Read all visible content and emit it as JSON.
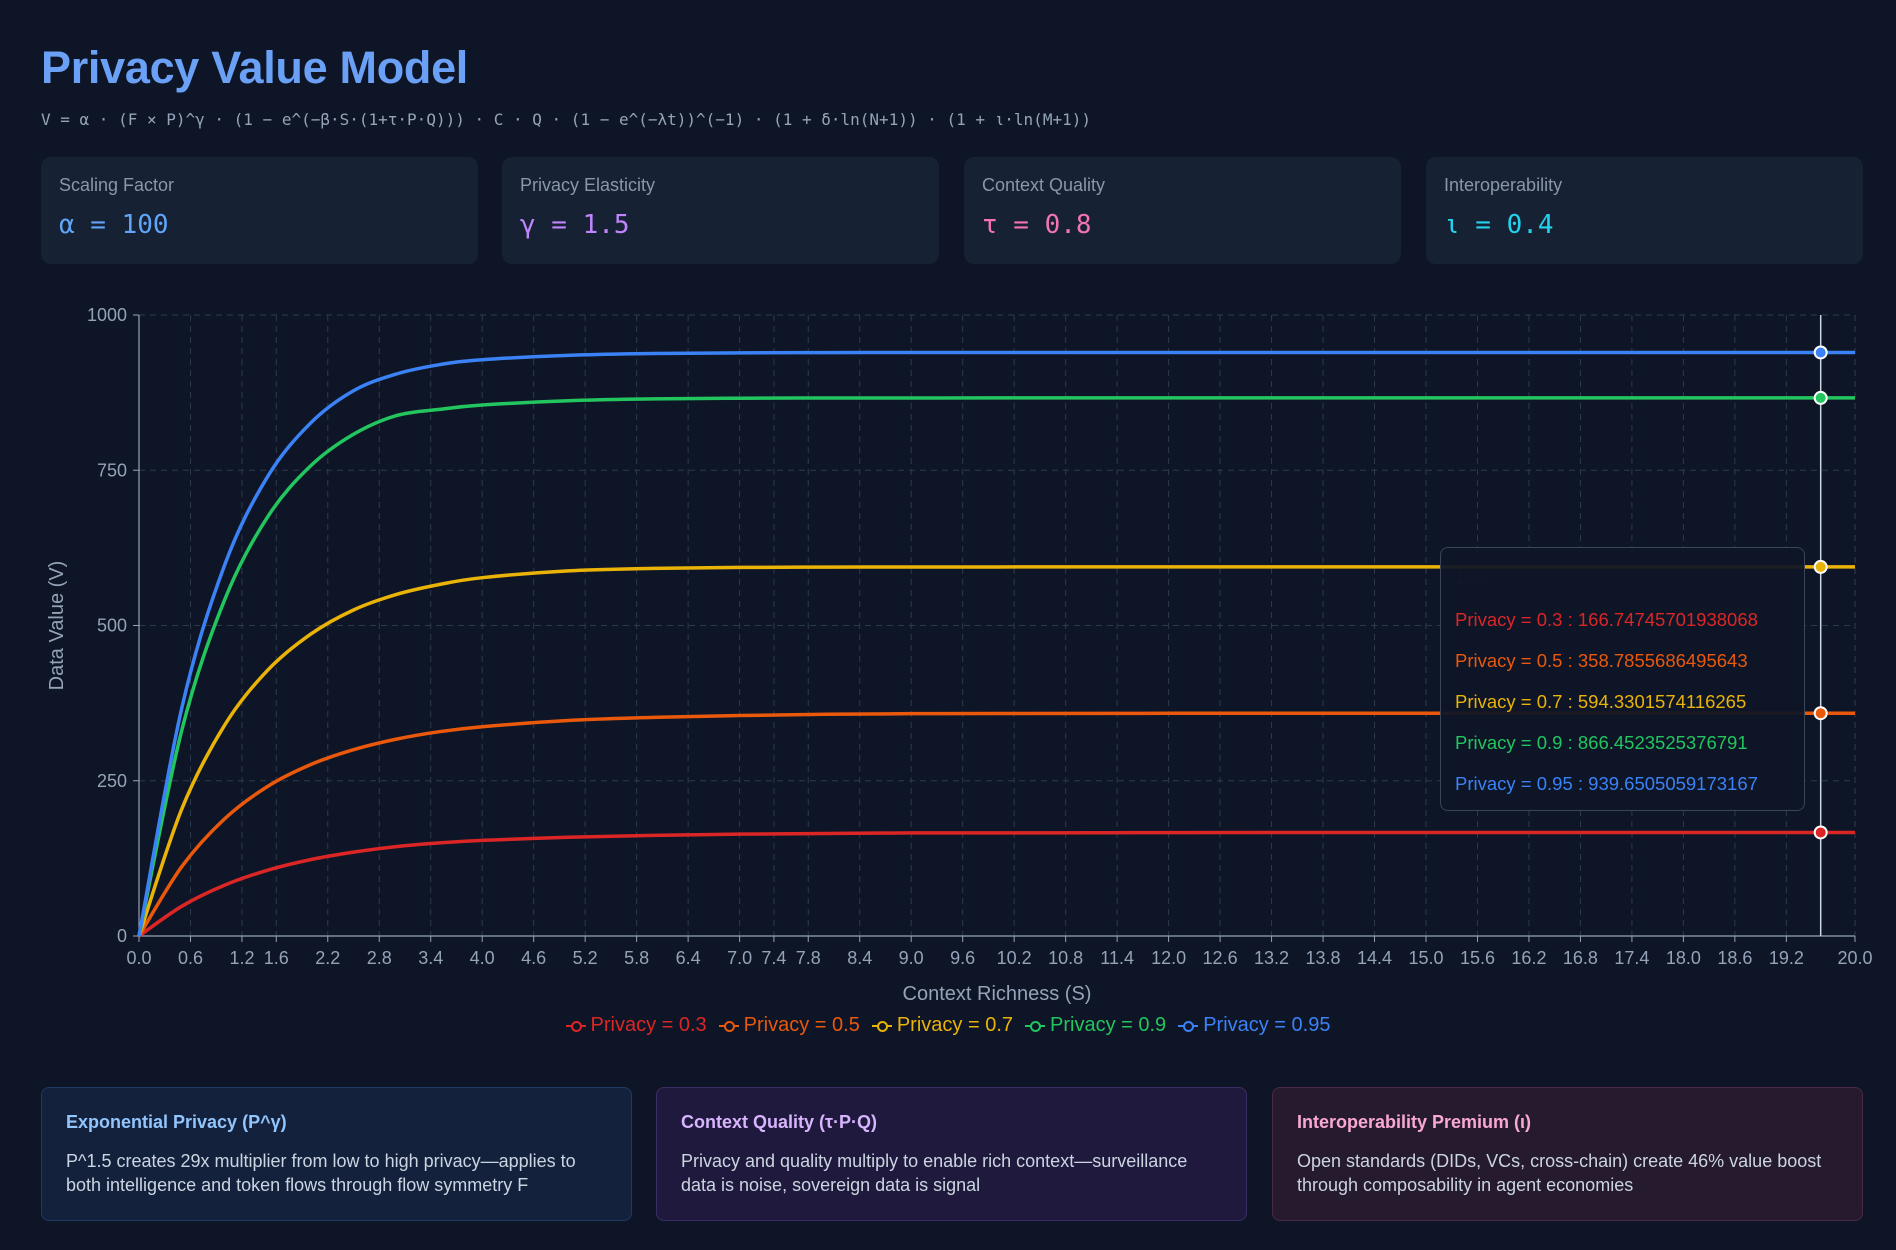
{
  "header": {
    "title": "Privacy Value Model",
    "formula": "V = α · (F × P)^γ · (1 − e^(−β·S·(1+τ·P·Q))) · C · Q · (1 − e^(−λt))^(−1) · (1 + δ·ln(N+1)) · (1 + ι·ln(M+1))"
  },
  "params": [
    {
      "label": "Scaling Factor",
      "value": "α = 100",
      "color": "#60a5fa"
    },
    {
      "label": "Privacy Elasticity",
      "value": "γ = 1.5",
      "color": "#c084fc"
    },
    {
      "label": "Context Quality",
      "value": "τ = 0.8",
      "color": "#f472b6"
    },
    {
      "label": "Interoperability",
      "value": "ι = 0.4",
      "color": "#22d3ee"
    }
  ],
  "chart_data": {
    "type": "line",
    "xlabel": "Context Richness (S)",
    "ylabel": "Data Value (V)",
    "xlim": [
      0,
      20
    ],
    "ylim": [
      0,
      1000
    ],
    "x_ticks": [
      "0.0",
      "0.6",
      "1.2",
      "1.6",
      "2.2",
      "2.8",
      "3.4",
      "4.0",
      "4.6",
      "5.2",
      "5.8",
      "6.4",
      "7.0",
      "7.4",
      "7.8",
      "8.4",
      "9.0",
      "9.6",
      "10.2",
      "10.8",
      "11.4",
      "12.0",
      "12.6",
      "13.2",
      "13.8",
      "14.4",
      "15.0",
      "15.6",
      "16.2",
      "16.8",
      "17.4",
      "18.0",
      "18.6",
      "19.2",
      "20.0"
    ],
    "y_ticks": [
      "0",
      "250",
      "500",
      "750",
      "1000"
    ],
    "x": [
      0,
      0.5,
      1,
      1.5,
      2,
      2.5,
      3,
      3.5,
      4,
      5,
      6,
      7,
      8,
      9,
      10,
      12,
      14,
      16,
      18,
      19.6,
      20
    ],
    "series": [
      {
        "name": "Privacy = 0.3",
        "color": "#dc2626",
        "values": [
          0,
          48,
          82,
          106,
          123,
          135,
          144,
          150,
          154,
          159,
          162,
          164,
          165,
          166,
          166,
          166.5,
          166.7,
          166.7,
          166.7,
          166.75,
          166.75
        ]
      },
      {
        "name": "Privacy = 0.5",
        "color": "#ea580c",
        "values": [
          0,
          112,
          189,
          241,
          276,
          300,
          317,
          329,
          337,
          347,
          352,
          355,
          357,
          358,
          358.3,
          358.6,
          358.7,
          358.8,
          358.8,
          358.79,
          358.79
        ]
      },
      {
        "name": "Privacy = 0.7",
        "color": "#eab308",
        "values": [
          0,
          205,
          340,
          428,
          486,
          525,
          550,
          566,
          577,
          588,
          592,
          593.5,
          594,
          594.2,
          594.3,
          594.33,
          594.33,
          594.33,
          594.33,
          594.33,
          594.33
        ]
      },
      {
        "name": "Privacy = 0.9",
        "color": "#22c55e",
        "values": [
          0,
          332,
          542,
          675,
          757,
          808,
          838,
          848,
          855,
          862,
          865,
          866,
          866.3,
          866.4,
          866.45,
          866.45,
          866.45,
          866.45,
          866.45,
          866.45,
          866.45
        ]
      },
      {
        "name": "Privacy = 0.95",
        "color": "#3b82f6",
        "values": [
          0,
          368,
          598,
          740,
          826,
          878,
          905,
          920,
          928,
          935,
          938,
          939,
          939.4,
          939.6,
          939.65,
          939.65,
          939.65,
          939.65,
          939.65,
          939.65,
          939.65
        ]
      }
    ],
    "grid": true,
    "legend": "bottom-center",
    "hover": {
      "x": 19.6,
      "x_label": "19.6",
      "rows": [
        {
          "text": "Privacy = 0.3 : 166.74745701938068",
          "color": "#dc2626"
        },
        {
          "text": "Privacy = 0.5 : 358.7855686495643",
          "color": "#ea580c"
        },
        {
          "text": "Privacy = 0.7 : 594.3301574116265",
          "color": "#eab308"
        },
        {
          "text": "Privacy = 0.9 : 866.4523525376791",
          "color": "#22c55e"
        },
        {
          "text": "Privacy = 0.95 : 939.6505059173167",
          "color": "#3b82f6"
        }
      ]
    }
  },
  "notes": [
    {
      "title": "Exponential Privacy (P^γ)",
      "text": "P^1.5 creates 29x multiplier from low to high privacy—applies to both intelligence and token flows through flow symmetry F",
      "title_color": "#93c5fd",
      "bg": "#13213d",
      "border": "#1e3a63"
    },
    {
      "title": "Context Quality (τ·P·Q)",
      "text": "Privacy and quality multiply to enable rich context—surveillance data is noise, sovereign data is signal",
      "title_color": "#d8b4fe",
      "bg": "#1f1a3d",
      "border": "#3b2d63"
    },
    {
      "title": "Interoperability Premium (ι)",
      "text": "Open standards (DIDs, VCs, cross-chain) create 46% value boost through composability in agent economies",
      "title_color": "#f9a8d4",
      "bg": "#261a2e",
      "border": "#4a2a42"
    }
  ]
}
